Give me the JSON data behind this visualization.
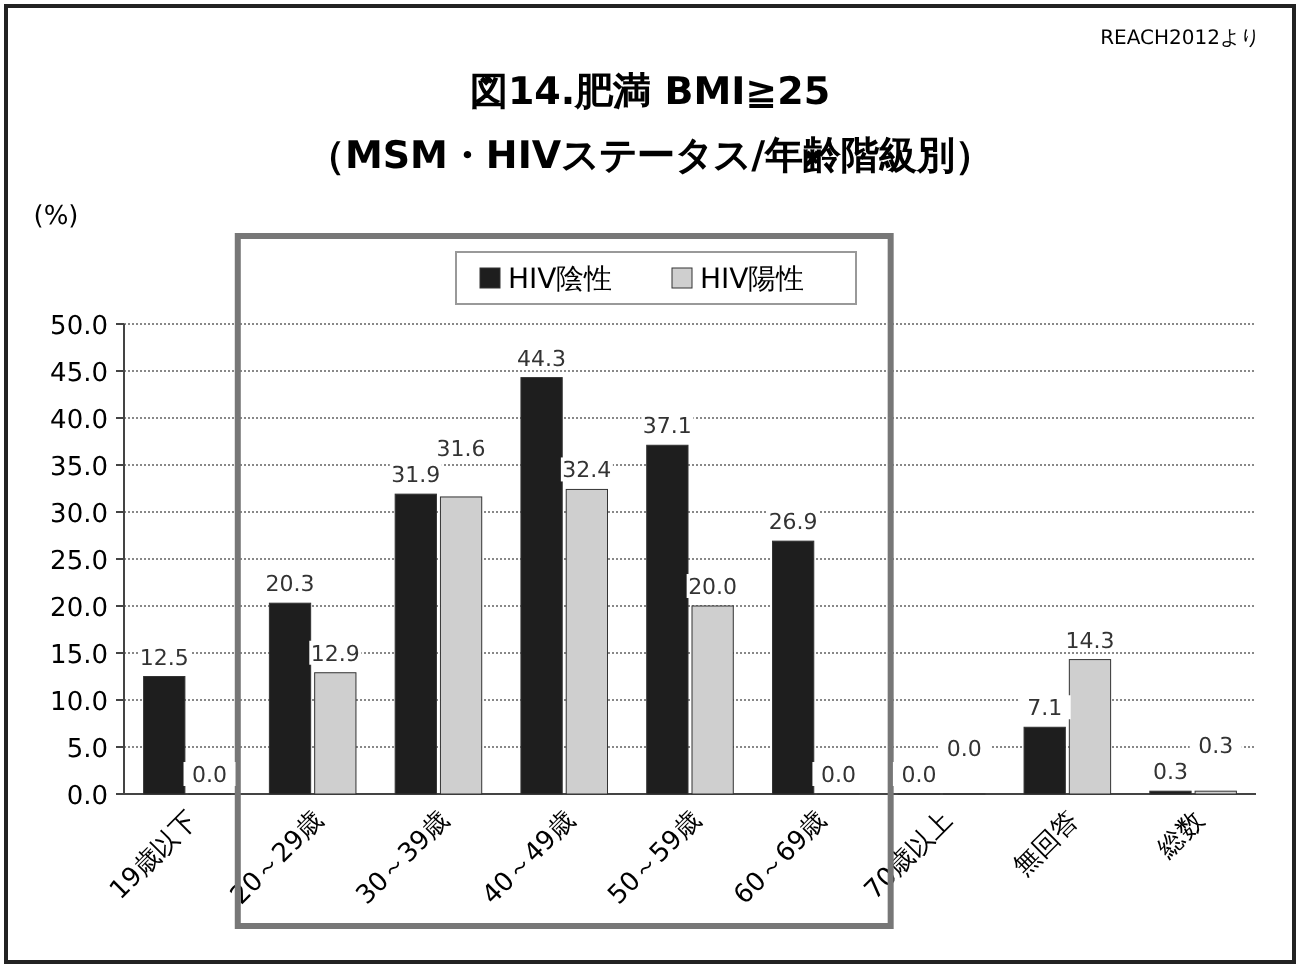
{
  "chart_data": {
    "type": "bar",
    "title": "図14.肥満 BMI≧25",
    "subtitle": "（MSM・HIVステータス/年齢階級別）",
    "ylabel": "(%)",
    "annotations": [
      "REACH2012より"
    ],
    "categories": [
      "19歳以下",
      "20～29歳",
      "30～39歳",
      "40～49歳",
      "50～59歳",
      "60～69歳",
      "70歳以上",
      "無回答",
      "総数"
    ],
    "series": [
      {
        "name": "HIV陰性",
        "color": "#1e1e1e",
        "values": [
          12.5,
          20.3,
          31.9,
          44.3,
          37.1,
          26.9,
          0.0,
          7.1,
          0.3
        ],
        "value_labels": [
          "12.5",
          "20.3",
          "31.9",
          "44.3",
          "37.1",
          "26.9",
          "0.0",
          "7.1",
          "0.3"
        ]
      },
      {
        "name": "HIV陽性",
        "color": "#cfcfcf",
        "values": [
          0.0,
          12.9,
          31.6,
          32.4,
          20.0,
          0.0,
          0.0,
          14.3,
          0.3
        ],
        "value_labels": [
          "0.0",
          "12.9",
          "31.6",
          "32.4",
          "20.0",
          "0.0",
          "0.0",
          "14.3",
          "0.3"
        ]
      }
    ],
    "ylim": [
      0,
      50
    ],
    "yticks": [
      {
        "value": 0,
        "label": "0.0"
      },
      {
        "value": 5,
        "label": "5.0"
      },
      {
        "value": 10,
        "label": "10.0"
      },
      {
        "value": 15,
        "label": "15.0"
      },
      {
        "value": 20,
        "label": "20.0"
      },
      {
        "value": 25,
        "label": "25.0"
      },
      {
        "value": 30,
        "label": "30.0"
      },
      {
        "value": 35,
        "label": "35.0"
      },
      {
        "value": 40,
        "label": "40.0"
      },
      {
        "value": 45,
        "label": "45.0"
      },
      {
        "value": 50,
        "label": "50.0"
      }
    ],
    "grid": "y",
    "legend": "top"
  }
}
